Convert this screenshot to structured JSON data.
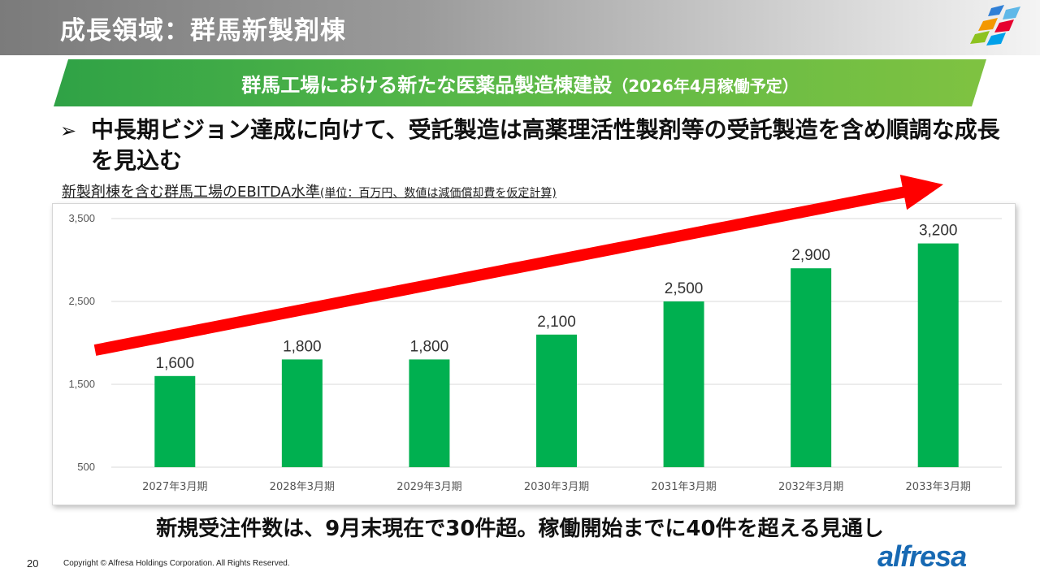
{
  "header": {
    "title": "成長領域：群馬新製剤棟"
  },
  "banner": {
    "main": "群馬工場における新たな医薬品製造棟建設",
    "sub": "（2026年4月稼働予定）"
  },
  "bullet": {
    "symbol": "➢",
    "text": "中長期ビジョン達成に向けて、受託製造は高薬理活性製剤等の受託製造を含め順調な成長を見込む"
  },
  "caption": {
    "main": "新製剤棟を含む群馬工場のEBITDA水準",
    "unit": "(単位：百万円、数値は減価償却費を仮定計算)"
  },
  "chart_data": {
    "type": "bar",
    "categories": [
      "2027年3月期",
      "2028年3月期",
      "2029年3月期",
      "2030年3月期",
      "2031年3月期",
      "2032年3月期",
      "2033年3月期"
    ],
    "values": [
      1600,
      1800,
      1800,
      2100,
      2500,
      2900,
      3200
    ],
    "value_labels": [
      "1,600",
      "1,800",
      "1,800",
      "2,100",
      "2,500",
      "2,900",
      "3,200"
    ],
    "yticks": [
      500,
      1500,
      2500,
      3500
    ],
    "ytick_labels": [
      "500",
      "1,500",
      "2,500",
      "3,500"
    ],
    "ylim": [
      500,
      3500
    ],
    "grid": true,
    "bar_color": "#00b050",
    "trend_arrow_color": "#ff0000",
    "xlabel": "",
    "ylabel": ""
  },
  "footer": {
    "statement": "新規受注件数は、9月末現在で30件超。稼働開始までに40件を超える見通し",
    "page_number": "20",
    "copyright": "Copyright © Alfresa Holdings Corporation. All Rights Reserved.",
    "brand": "alfresa"
  },
  "colors": {
    "brand_blue": "#1769b3",
    "banner_green": "#58b848"
  },
  "icons": {
    "logo_mark": "alfresa-logo-mark-icon"
  }
}
